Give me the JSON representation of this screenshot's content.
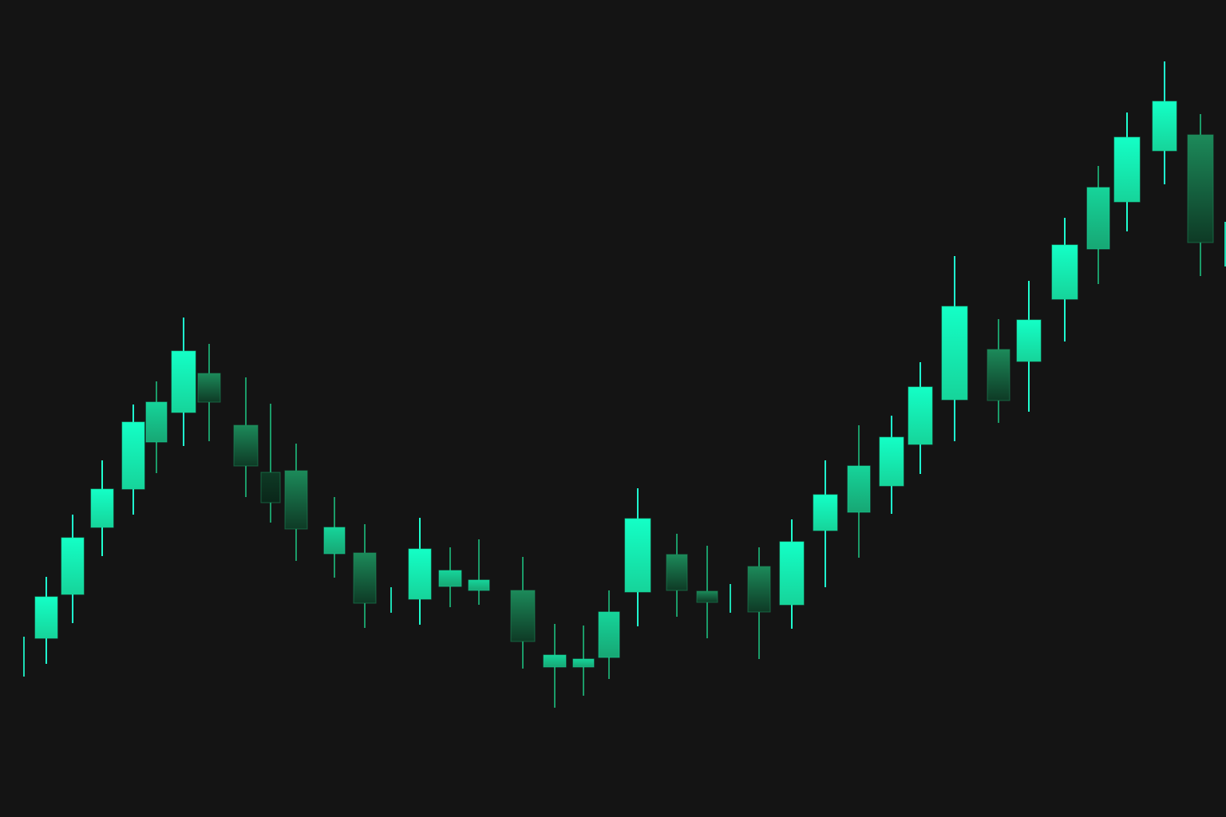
{
  "colors": {
    "background": "#141414",
    "bull_bright": "#14ffc6",
    "bull_mid": "#16d49a",
    "bull_dim": "#17a774",
    "bear_top": "#1c8a5a",
    "bear_bottom": "#0e3a25",
    "wick_bright": "#1fffd0",
    "wick_dim": "#1b9c69"
  },
  "chart_data": {
    "type": "candlestick",
    "title": "",
    "xlabel": "",
    "ylabel": "",
    "axes_visible": false,
    "grid": false,
    "ylim": [
      0,
      1024
    ],
    "candles": [
      {
        "x": 30,
        "w": 2,
        "open": 225,
        "close": 225,
        "high": 226,
        "low": 176,
        "tone": "wick"
      },
      {
        "x": 58,
        "w": 28,
        "open": 224,
        "close": 276,
        "high": 301,
        "low": 192,
        "tone": "bull"
      },
      {
        "x": 91,
        "w": 28,
        "open": 279,
        "close": 350,
        "high": 379,
        "low": 243,
        "tone": "bull"
      },
      {
        "x": 128,
        "w": 28,
        "open": 363,
        "close": 411,
        "high": 447,
        "low": 327,
        "tone": "bull"
      },
      {
        "x": 167,
        "w": 28,
        "open": 411,
        "close": 495,
        "high": 517,
        "low": 379,
        "tone": "bull"
      },
      {
        "x": 196,
        "w": 26,
        "open": 470,
        "close": 520,
        "high": 546,
        "low": 431,
        "tone": "bull-dim"
      },
      {
        "x": 230,
        "w": 30,
        "open": 507,
        "close": 584,
        "high": 626,
        "low": 465,
        "tone": "bull"
      },
      {
        "x": 262,
        "w": 28,
        "open": 556,
        "close": 520,
        "high": 593,
        "low": 471,
        "tone": "bear"
      },
      {
        "x": 308,
        "w": 30,
        "open": 491,
        "close": 440,
        "high": 551,
        "low": 401,
        "tone": "bear"
      },
      {
        "x": 339,
        "w": 24,
        "open": 432,
        "close": 394,
        "high": 518,
        "low": 369,
        "tone": "bear-dark"
      },
      {
        "x": 371,
        "w": 28,
        "open": 434,
        "close": 361,
        "high": 468,
        "low": 321,
        "tone": "bear"
      },
      {
        "x": 419,
        "w": 26,
        "open": 330,
        "close": 363,
        "high": 401,
        "low": 300,
        "tone": "bull-dim"
      },
      {
        "x": 457,
        "w": 28,
        "open": 331,
        "close": 268,
        "high": 367,
        "low": 237,
        "tone": "bear"
      },
      {
        "x": 490,
        "w": 2,
        "open": 286,
        "close": 286,
        "high": 288,
        "low": 256,
        "tone": "wick"
      },
      {
        "x": 526,
        "w": 28,
        "open": 273,
        "close": 336,
        "high": 375,
        "low": 241,
        "tone": "bull"
      },
      {
        "x": 564,
        "w": 28,
        "open": 289,
        "close": 309,
        "high": 338,
        "low": 263,
        "tone": "bull-dim"
      },
      {
        "x": 600,
        "w": 26,
        "open": 284,
        "close": 297,
        "high": 348,
        "low": 266,
        "tone": "bull-dim"
      },
      {
        "x": 655,
        "w": 30,
        "open": 284,
        "close": 220,
        "high": 326,
        "low": 186,
        "tone": "bear"
      },
      {
        "x": 695,
        "w": 28,
        "open": 188,
        "close": 203,
        "high": 242,
        "low": 137,
        "tone": "bull-dim"
      },
      {
        "x": 731,
        "w": 26,
        "open": 188,
        "close": 198,
        "high": 240,
        "low": 152,
        "tone": "bull-dim"
      },
      {
        "x": 763,
        "w": 26,
        "open": 200,
        "close": 257,
        "high": 284,
        "low": 173,
        "tone": "bull-dim"
      },
      {
        "x": 799,
        "w": 32,
        "open": 282,
        "close": 374,
        "high": 412,
        "low": 239,
        "tone": "bull"
      },
      {
        "x": 848,
        "w": 26,
        "open": 329,
        "close": 284,
        "high": 355,
        "low": 251,
        "tone": "bear"
      },
      {
        "x": 886,
        "w": 26,
        "open": 283,
        "close": 269,
        "high": 340,
        "low": 224,
        "tone": "bear"
      },
      {
        "x": 915,
        "w": 2,
        "open": 274,
        "close": 274,
        "high": 292,
        "low": 256,
        "tone": "wick"
      },
      {
        "x": 951,
        "w": 28,
        "open": 314,
        "close": 257,
        "high": 338,
        "low": 198,
        "tone": "bear"
      },
      {
        "x": 992,
        "w": 30,
        "open": 266,
        "close": 345,
        "high": 373,
        "low": 236,
        "tone": "bull"
      },
      {
        "x": 1034,
        "w": 30,
        "open": 359,
        "close": 404,
        "high": 447,
        "low": 288,
        "tone": "bull"
      },
      {
        "x": 1076,
        "w": 28,
        "open": 382,
        "close": 440,
        "high": 491,
        "low": 325,
        "tone": "bull-dim"
      },
      {
        "x": 1117,
        "w": 30,
        "open": 415,
        "close": 476,
        "high": 503,
        "low": 380,
        "tone": "bull"
      },
      {
        "x": 1153,
        "w": 30,
        "open": 467,
        "close": 539,
        "high": 570,
        "low": 430,
        "tone": "bull"
      },
      {
        "x": 1196,
        "w": 32,
        "open": 523,
        "close": 640,
        "high": 703,
        "low": 471,
        "tone": "bull"
      },
      {
        "x": 1251,
        "w": 28,
        "open": 586,
        "close": 522,
        "high": 624,
        "low": 494,
        "tone": "bear"
      },
      {
        "x": 1289,
        "w": 30,
        "open": 571,
        "close": 623,
        "high": 672,
        "low": 508,
        "tone": "bull"
      },
      {
        "x": 1334,
        "w": 32,
        "open": 649,
        "close": 717,
        "high": 751,
        "low": 596,
        "tone": "bull"
      },
      {
        "x": 1376,
        "w": 28,
        "open": 712,
        "close": 789,
        "high": 816,
        "low": 668,
        "tone": "bull-dim"
      },
      {
        "x": 1412,
        "w": 32,
        "open": 771,
        "close": 852,
        "high": 883,
        "low": 734,
        "tone": "bull"
      },
      {
        "x": 1459,
        "w": 30,
        "open": 835,
        "close": 897,
        "high": 947,
        "low": 793,
        "tone": "bull"
      },
      {
        "x": 1504,
        "w": 32,
        "open": 855,
        "close": 720,
        "high": 881,
        "low": 678,
        "tone": "bear"
      },
      {
        "x": 1535,
        "w": 2,
        "open": 745,
        "close": 745,
        "high": 746,
        "low": 690,
        "tone": "wick"
      }
    ]
  }
}
